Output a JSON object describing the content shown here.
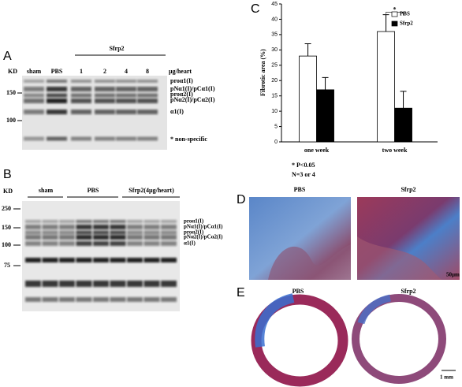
{
  "panel_a": {
    "label": "A",
    "kd": "KD",
    "lanes": [
      "sham",
      "PBS",
      "1",
      "2",
      "4",
      "8"
    ],
    "group": "Sfrp2",
    "dose_unit": "µg/heart",
    "markers": [
      "150",
      "100"
    ],
    "bands": [
      "proα1(I)",
      "pNα1(I)/pCα1(I)",
      "proα2(I)",
      "pNα2(I)/pCα2(I)",
      "α1(I)"
    ],
    "note": "* non-specific"
  },
  "panel_b": {
    "label": "B",
    "kd": "KD",
    "groups": [
      "sham",
      "PBS",
      "Sfrp2(4µg/heart)"
    ],
    "markers": [
      "250",
      "150",
      "100",
      "75"
    ],
    "bands": [
      "proα1(I)",
      "pNα1(I)/pCα1(I)",
      "proα2(I)",
      "pNα2(I)/pCα2(I)",
      "α1(I)"
    ]
  },
  "chart_data": {
    "type": "bar",
    "label": "C",
    "y_label": "Fibrotic area (%)",
    "categories": [
      "one week",
      "two week"
    ],
    "series": [
      {
        "name": "PBS",
        "color": "#ffffff",
        "values": [
          28,
          36
        ],
        "errors": [
          4,
          5.5
        ]
      },
      {
        "name": "Sfrp2",
        "color": "#000000",
        "values": [
          17,
          11
        ],
        "errors": [
          4,
          5.5
        ]
      }
    ],
    "ylim": [
      0,
      45
    ],
    "yticks": [
      0,
      5,
      10,
      15,
      20,
      25,
      30,
      35,
      40,
      45
    ],
    "legend": "top-right",
    "annotations": [
      "*"
    ],
    "notes": [
      "* P<0.05",
      "N=3 or 4"
    ]
  },
  "panel_d": {
    "label": "D",
    "images": [
      "PBS",
      "Sfrp2"
    ],
    "scale": "50µm"
  },
  "panel_e": {
    "label": "E",
    "images": [
      "PBS",
      "Sfrp2"
    ],
    "scale": "1 mm"
  }
}
